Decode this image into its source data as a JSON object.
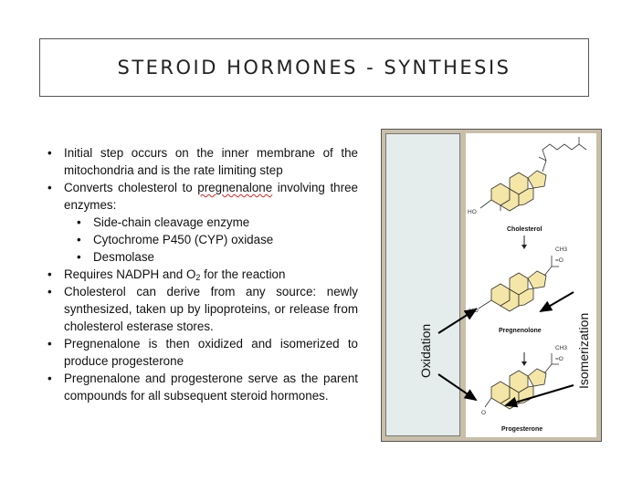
{
  "slide": {
    "title": "STEROID HORMONES - SYNTHESIS"
  },
  "bullets": [
    {
      "text": "Initial step occurs on the inner membrane of the mitochondria and is the rate limiting step"
    },
    {
      "pre": "Converts cholesterol to ",
      "highlight": "pregnenalone",
      "post": " involving three enzymes:"
    },
    {
      "text": "Requires NADPH and O",
      "sub": "2",
      "post": " for the reaction"
    },
    {
      "text": "Cholesterol can derive from any source: newly synthesized, taken up by lipoproteins, or release from cholesterol esterase stores."
    },
    {
      "text": "Pregnenalone is then oxidized and isomerized to produce progesterone"
    },
    {
      "text": "Pregnenalone and progesterone serve as the parent compounds for all subsequent steroid hormones."
    }
  ],
  "enzymes": [
    "Side-chain cleavage enzyme",
    "Cytochrome P450 (CYP) oxidase",
    "Desmolase"
  ],
  "figure": {
    "molecules": [
      "Cholesterol",
      "Pregnenolone",
      "Progesterone"
    ],
    "group_labels": {
      "ho": "HO",
      "o": "O",
      "ch3": "CH3",
      "carbonyl": "=O"
    },
    "side_labels": {
      "left": "Oxidation",
      "right": "Isomerization"
    }
  },
  "colors": {
    "ring_fill": "#f4e6a6",
    "figure_bg": "#c9bfa8",
    "left_panel": "#e4ecec"
  }
}
